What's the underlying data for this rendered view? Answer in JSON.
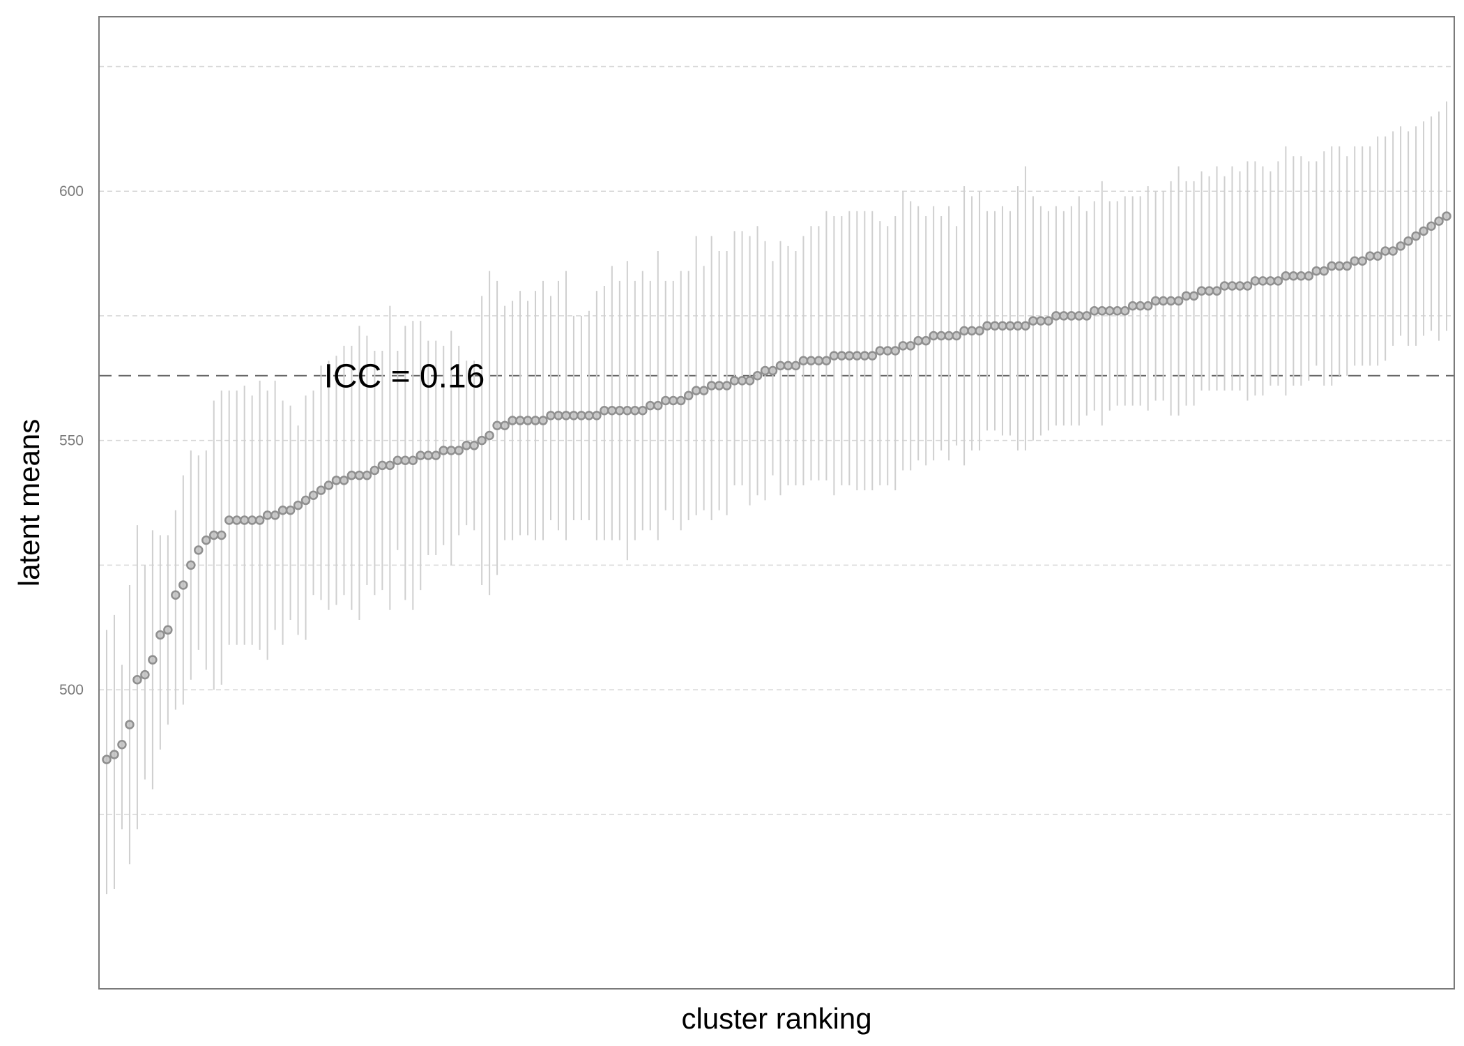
{
  "chart_data": {
    "type": "scatter",
    "subtype": "caterpillar",
    "xlabel": "cluster ranking",
    "ylabel": "latent means",
    "ylim": [
      440,
      635
    ],
    "xlim": [
      0,
      177
    ],
    "y_ticks": [
      500,
      550,
      600
    ],
    "grid": "horizontal-dashed",
    "reference_line": {
      "y": 563,
      "style": "dashed"
    },
    "annotation": {
      "text": "ICC = 0.16",
      "x": 25,
      "y": 563
    },
    "x": [
      1,
      2,
      3,
      4,
      5,
      6,
      7,
      8,
      9,
      10,
      11,
      12,
      13,
      14,
      15,
      16,
      17,
      18,
      19,
      20,
      21,
      22,
      23,
      24,
      25,
      26,
      27,
      28,
      29,
      30,
      31,
      32,
      33,
      34,
      35,
      36,
      37,
      38,
      39,
      40,
      41,
      42,
      43,
      44,
      45,
      46,
      47,
      48,
      49,
      50,
      51,
      52,
      53,
      54,
      55,
      56,
      57,
      58,
      59,
      60,
      61,
      62,
      63,
      64,
      65,
      66,
      67,
      68,
      69,
      70,
      71,
      72,
      73,
      74,
      75,
      76,
      77,
      78,
      79,
      80,
      81,
      82,
      83,
      84,
      85,
      86,
      87,
      88,
      89,
      90,
      91,
      92,
      93,
      94,
      95,
      96,
      97,
      98,
      99,
      100,
      101,
      102,
      103,
      104,
      105,
      106,
      107,
      108,
      109,
      110,
      111,
      112,
      113,
      114,
      115,
      116,
      117,
      118,
      119,
      120,
      121,
      122,
      123,
      124,
      125,
      126,
      127,
      128,
      129,
      130,
      131,
      132,
      133,
      134,
      135,
      136,
      137,
      138,
      139,
      140,
      141,
      142,
      143,
      144,
      145,
      146,
      147,
      148,
      149,
      150,
      151,
      152,
      153,
      154,
      155,
      156,
      157,
      158,
      159,
      160,
      161,
      162,
      163,
      164,
      165,
      166,
      167,
      168,
      169,
      170,
      171,
      172,
      173,
      174,
      175,
      176
    ],
    "y": [
      486,
      487,
      489,
      493,
      502,
      503,
      506,
      511,
      512,
      519,
      521,
      525,
      528,
      530,
      531,
      531,
      534,
      534,
      534,
      534,
      534,
      535,
      535,
      536,
      536,
      537,
      538,
      539,
      540,
      541,
      542,
      542,
      543,
      543,
      543,
      544,
      545,
      545,
      546,
      546,
      546,
      547,
      547,
      547,
      548,
      548,
      548,
      549,
      549,
      550,
      551,
      553,
      553,
      554,
      554,
      554,
      554,
      554,
      555,
      555,
      555,
      555,
      555,
      555,
      555,
      556,
      556,
      556,
      556,
      556,
      556,
      557,
      557,
      558,
      558,
      558,
      559,
      560,
      560,
      561,
      561,
      561,
      562,
      562,
      562,
      563,
      564,
      564,
      565,
      565,
      565,
      566,
      566,
      566,
      566,
      567,
      567,
      567,
      567,
      567,
      567,
      568,
      568,
      568,
      569,
      569,
      570,
      570,
      571,
      571,
      571,
      571,
      572,
      572,
      572,
      573,
      573,
      573,
      573,
      573,
      573,
      574,
      574,
      574,
      575,
      575,
      575,
      575,
      575,
      576,
      576,
      576,
      576,
      576,
      577,
      577,
      577,
      578,
      578,
      578,
      578,
      579,
      579,
      580,
      580,
      580,
      581,
      581,
      581,
      581,
      582,
      582,
      582,
      582,
      583,
      583,
      583,
      583,
      584,
      584,
      585,
      585,
      585,
      586,
      586,
      587,
      587,
      588,
      588,
      589,
      590,
      591,
      592,
      593,
      594,
      595
    ],
    "lower": [
      459,
      460,
      472,
      465,
      472,
      482,
      480,
      488,
      493,
      496,
      497,
      502,
      508,
      504,
      500,
      501,
      509,
      509,
      509,
      509,
      508,
      506,
      512,
      509,
      514,
      511,
      510,
      519,
      518,
      516,
      517,
      519,
      516,
      514,
      521,
      519,
      520,
      516,
      528,
      518,
      516,
      520,
      527,
      527,
      529,
      525,
      531,
      533,
      532,
      521,
      519,
      523,
      530,
      530,
      531,
      531,
      530,
      530,
      534,
      532,
      530,
      534,
      534,
      534,
      530,
      530,
      530,
      530,
      526,
      530,
      532,
      532,
      530,
      536,
      534,
      532,
      534,
      535,
      536,
      534,
      536,
      535,
      541,
      541,
      537,
      539,
      538,
      543,
      539,
      541,
      541,
      541,
      542,
      542,
      542,
      539,
      541,
      541,
      540,
      540,
      540,
      541,
      541,
      540,
      544,
      544,
      546,
      545,
      546,
      548,
      546,
      549,
      545,
      548,
      548,
      552,
      552,
      551,
      551,
      548,
      548,
      550,
      551,
      552,
      553,
      553,
      553,
      553,
      555,
      556,
      553,
      556,
      557,
      557,
      557,
      557,
      556,
      558,
      558,
      555,
      555,
      557,
      557,
      560,
      560,
      560,
      560,
      560,
      560,
      558,
      559,
      559,
      561,
      561,
      559,
      561,
      561,
      562,
      565,
      561,
      561,
      563,
      563,
      565,
      565,
      565,
      565,
      566,
      569,
      571,
      569,
      569,
      571,
      572,
      570,
      572
    ],
    "upper": [
      512,
      515,
      505,
      521,
      533,
      525,
      532,
      531,
      531,
      536,
      543,
      548,
      547,
      548,
      558,
      560,
      560,
      560,
      561,
      559,
      562,
      560,
      562,
      558,
      557,
      553,
      559,
      560,
      565,
      566,
      567,
      569,
      569,
      573,
      571,
      568,
      568,
      577,
      568,
      573,
      574,
      574,
      570,
      570,
      569,
      572,
      569,
      566,
      566,
      579,
      584,
      582,
      577,
      578,
      580,
      578,
      580,
      582,
      579,
      582,
      584,
      575,
      575,
      576,
      580,
      581,
      585,
      582,
      586,
      582,
      584,
      582,
      588,
      582,
      582,
      584,
      584,
      591,
      585,
      591,
      588,
      588,
      592,
      592,
      591,
      593,
      590,
      586,
      590,
      589,
      588,
      591,
      593,
      593,
      596,
      595,
      595,
      596,
      596,
      596,
      596,
      594,
      593,
      595,
      600,
      598,
      597,
      595,
      597,
      595,
      597,
      593,
      601,
      599,
      600,
      596,
      596,
      597,
      596,
      601,
      605,
      599,
      597,
      596,
      597,
      596,
      597,
      599,
      596,
      598,
      602,
      598,
      598,
      599,
      599,
      599,
      601,
      600,
      600,
      602,
      605,
      602,
      602,
      604,
      603,
      605,
      603,
      605,
      604,
      606,
      606,
      605,
      604,
      606,
      609,
      607,
      607,
      606,
      606,
      608,
      609,
      609,
      607,
      609,
      609,
      609,
      611,
      611,
      612,
      613,
      612,
      613,
      614,
      615,
      616,
      618
    ]
  }
}
